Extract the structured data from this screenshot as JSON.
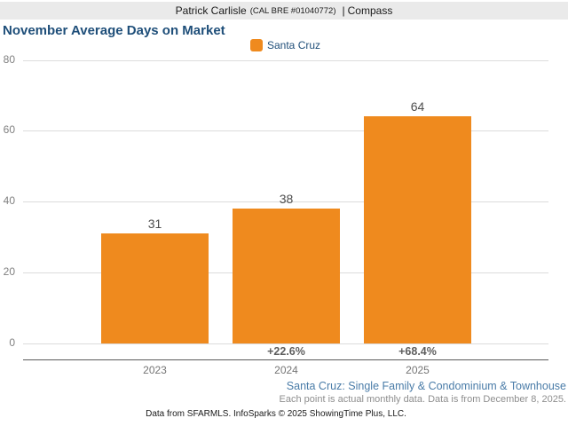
{
  "header": {
    "agent_name": "Patrick Carlisle",
    "license": "(CAL BRE #01040772)",
    "separator": "|",
    "brand": "Compass"
  },
  "chart": {
    "title": "November Average Days on Market",
    "legend_label": "Santa Cruz"
  },
  "chart_data": {
    "type": "bar",
    "title": "November Average Days on Market",
    "categories": [
      "2023",
      "2024",
      "2025"
    ],
    "values": [
      31,
      38,
      64
    ],
    "value_labels": [
      "31",
      "38",
      "64"
    ],
    "pct_change": [
      null,
      "+22.6%",
      "+68.4%"
    ],
    "series_name": "Santa Cruz",
    "legend": [
      "Santa Cruz"
    ],
    "legend_position": "top",
    "xlabel": "",
    "ylabel": "",
    "ylim": [
      0,
      80
    ],
    "yticks": [
      0,
      20,
      40,
      60,
      80
    ],
    "grid": true,
    "bar_color": "#EF8A1E"
  },
  "footer": {
    "subtitle": "Santa Cruz: Single Family & Condominium & Townhouse",
    "note": "Each point is actual monthly data. Data is from December 8, 2025.",
    "attribution": "Data from SFARMLS. InfoSparks © 2025 ShowingTime Plus, LLC."
  },
  "colors": {
    "accent_orange": "#EF8A1E",
    "title_navy": "#1E4E79",
    "subtitle_blue": "#4A7CA8",
    "header_band_gray": "#EAEAEA"
  }
}
